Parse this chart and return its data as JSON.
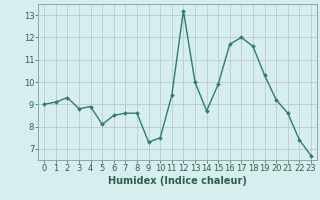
{
  "x": [
    0,
    1,
    2,
    3,
    4,
    5,
    6,
    7,
    8,
    9,
    10,
    11,
    12,
    13,
    14,
    15,
    16,
    17,
    18,
    19,
    20,
    21,
    22,
    23
  ],
  "y": [
    9.0,
    9.1,
    9.3,
    8.8,
    8.9,
    8.1,
    8.5,
    8.6,
    8.6,
    7.3,
    7.5,
    9.4,
    13.2,
    10.0,
    8.7,
    9.9,
    11.7,
    12.0,
    11.6,
    10.3,
    9.2,
    8.6,
    7.4,
    6.7
  ],
  "line_color": "#2e7d6e",
  "marker": "D",
  "marker_size": 2.0,
  "line_width": 1.0,
  "bg_color": "#d6eeee",
  "grid_color": "#c0c8c8",
  "xlabel": "Humidex (Indice chaleur)",
  "xlabel_fontsize": 7,
  "yticks": [
    7,
    8,
    9,
    10,
    11,
    12,
    13
  ],
  "xticks": [
    0,
    1,
    2,
    3,
    4,
    5,
    6,
    7,
    8,
    9,
    10,
    11,
    12,
    13,
    14,
    15,
    16,
    17,
    18,
    19,
    20,
    21,
    22,
    23
  ],
  "ylim": [
    6.5,
    13.5
  ],
  "xlim": [
    -0.5,
    23.5
  ],
  "tick_color": "#2e6050",
  "tick_fontsize": 6,
  "axis_color": "#2e6050",
  "spine_color": "#8a9a9a"
}
